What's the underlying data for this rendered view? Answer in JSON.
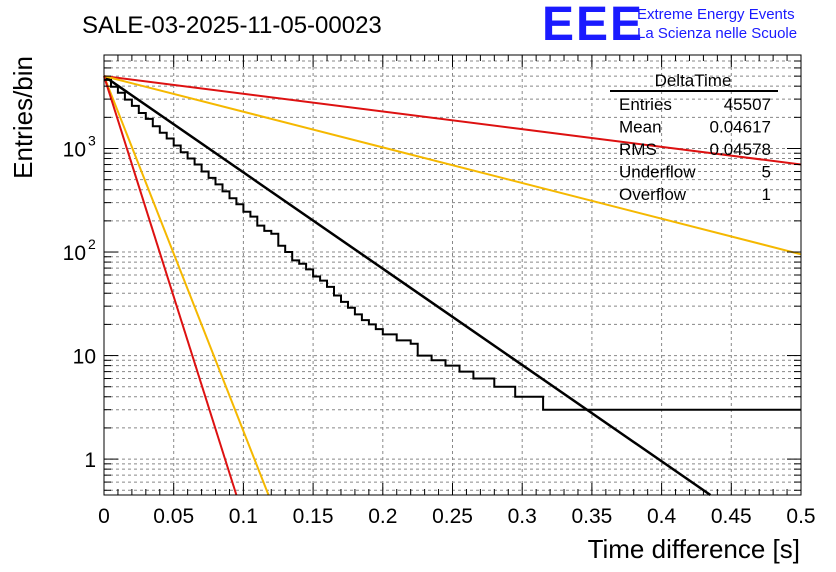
{
  "header": {
    "run_title": "SALE-03-2025-11-05-00023",
    "logo_text": "EEE",
    "org_line1": "Extreme Energy Events",
    "org_line2": "La Scienza nelle Scuole"
  },
  "stats_box": {
    "title": "DeltaTime",
    "rows": [
      {
        "label": "Entries",
        "value": "45507"
      },
      {
        "label": "Mean",
        "value": "0.04617"
      },
      {
        "label": "RMS",
        "value": "0.04578"
      },
      {
        "label": "Underflow",
        "value": "5"
      },
      {
        "label": "Overflow",
        "value": "1"
      }
    ]
  },
  "colors": {
    "histogram": "#000000",
    "fit": "#000000",
    "red_curve": "#dd1111",
    "yellow_curve": "#f5b800",
    "logo": "#1a1aff",
    "grid": "#888888"
  },
  "chart_data": {
    "type": "histogram",
    "title": "SALE-03-2025-11-05-00023",
    "xlabel": "Time difference [s]",
    "ylabel": "Entries/bin",
    "xlim": [
      0,
      0.5
    ],
    "ylim": [
      0.45,
      8000
    ],
    "yscale": "log",
    "grid": true,
    "x_ticks": [
      "0",
      "0.05",
      "0.1",
      "0.15",
      "0.2",
      "0.25",
      "0.3",
      "0.35",
      "0.4",
      "0.45",
      "0.5"
    ],
    "y_ticks": [
      {
        "value": 1,
        "base": "1",
        "exp": ""
      },
      {
        "value": 10,
        "base": "10",
        "exp": ""
      },
      {
        "value": 100,
        "base": "10",
        "exp": "2"
      },
      {
        "value": 1000,
        "base": "10",
        "exp": "3"
      }
    ],
    "bin_width": 0.005,
    "histogram": [
      4600,
      3950,
      3450,
      2970,
      2580,
      2200,
      1930,
      1640,
      1420,
      1250,
      1070,
      920,
      800,
      700,
      600,
      520,
      450,
      385,
      330,
      290,
      245,
      220,
      180,
      160,
      150,
      115,
      100,
      83,
      77,
      68,
      58,
      53,
      46,
      38,
      33,
      29,
      25,
      22,
      20,
      18,
      16,
      16,
      14,
      14,
      13,
      10,
      10,
      9,
      9,
      8,
      8,
      7,
      7,
      6,
      6,
      6,
      5,
      5,
      5,
      4,
      4,
      4,
      4,
      3,
      3,
      3,
      3,
      3,
      3,
      3,
      3,
      3,
      3,
      3,
      3,
      3,
      3,
      3,
      3,
      3,
      3,
      3,
      3,
      3,
      3,
      3,
      3,
      3,
      3,
      3,
      3,
      3,
      3,
      3,
      3,
      3,
      3,
      3,
      3,
      3
    ],
    "series": [
      {
        "name": "fit",
        "color": "#000000",
        "x": [
          0,
          0.435
        ],
        "y": [
          5000,
          0.45
        ]
      },
      {
        "name": "red-slow",
        "color": "#dd1111",
        "x": [
          0,
          0.5
        ],
        "y": [
          5000,
          700
        ]
      },
      {
        "name": "yellow-slow",
        "color": "#f5b800",
        "x": [
          0,
          0.5
        ],
        "y": [
          5000,
          95
        ]
      },
      {
        "name": "yellow-fast",
        "color": "#f5b800",
        "x": [
          0,
          0.118
        ],
        "y": [
          5000,
          0.45
        ]
      },
      {
        "name": "red-fast",
        "color": "#dd1111",
        "x": [
          0,
          0.095
        ],
        "y": [
          5000,
          0.45
        ]
      }
    ]
  }
}
